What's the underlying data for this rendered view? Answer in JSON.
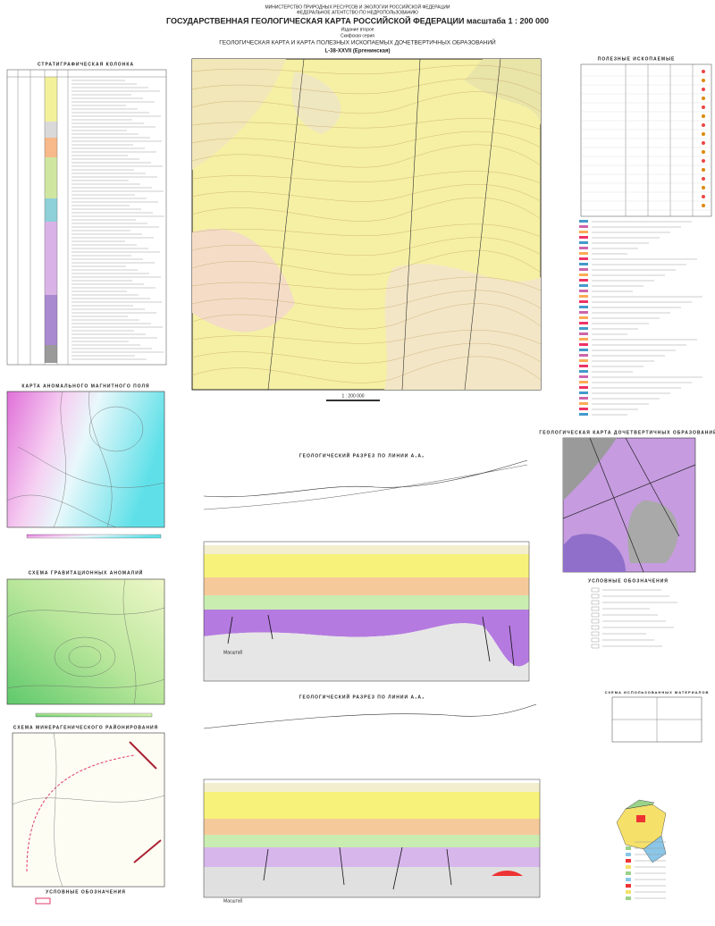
{
  "header": {
    "ministry": "МИНИСТЕРСТВО ПРИРОДНЫХ РЕСУРСОВ И ЭКОЛОГИИ РОССИЙСКОЙ ФЕДЕРАЦИИ",
    "agency": "ФЕДЕРАЛЬНОЕ АГЕНТСТВО ПО НЕДРОПОЛЬЗОВАНИЮ",
    "title": "ГОСУДАРСТВЕННАЯ ГЕОЛОГИЧЕСКАЯ КАРТА РОССИЙСКОЙ ФЕДЕРАЦИИ масштаба 1 : 200 000",
    "edition": "Издание второе",
    "series": "Скифская серия",
    "subtitle": "ГЕОЛОГИЧЕСКАЯ КАРТА И КАРТА ПОЛЕЗНЫХ ИСКОПАЕМЫХ ДОЧЕТВЕРТИЧНЫХ ОБРАЗОВАНИЙ",
    "sheet": "L-38-XXVII (Ергенинская)"
  },
  "left": {
    "strat_title": "СТРАТИГРАФИЧЕСКАЯ КОЛОНКА",
    "magnetic_title": "КАРТА АНОМАЛЬНОГО МАГНИТНОГО ПОЛЯ",
    "gravity_title": "СХЕМА ГРАВИТАЦИОННЫХ АНОМАЛИЙ",
    "minerag_title": "СХЕМА МИНЕРАГЕНИЧЕСКОГО РАЙОНИРОВАНИЯ",
    "minerag_legend": "УСЛОВНЫЕ ОБОЗНАЧЕНИЯ"
  },
  "center": {
    "map_scale": "1 : 200 000",
    "section1_title": "ГЕОЛОГИЧЕСКИЙ РАЗРЕЗ ПО ЛИНИИ А₁А₂",
    "section2_title": "ГЕОЛОГИЧЕСКИЙ РАЗРЕЗ ПО ЛИНИИ А₃А₄",
    "section1_scale": "Масштаб",
    "section2_scale": "Масштаб"
  },
  "right": {
    "minerals_title": "ПОЛЕЗНЫЕ ИСКОПАЕМЫЕ",
    "premap_title": "ГЕОЛОГИЧЕСКАЯ КАРТА ДОЧЕТВЕРТИЧНЫХ ОБРАЗОВАНИЙ",
    "premap_legend": "УСЛОВНЫЕ ОБОЗНАЧЕНИЯ",
    "materials_title": "СХЕМА ИСПОЛЬЗОВАННЫХ МАТЕРИАЛОВ"
  }
}
